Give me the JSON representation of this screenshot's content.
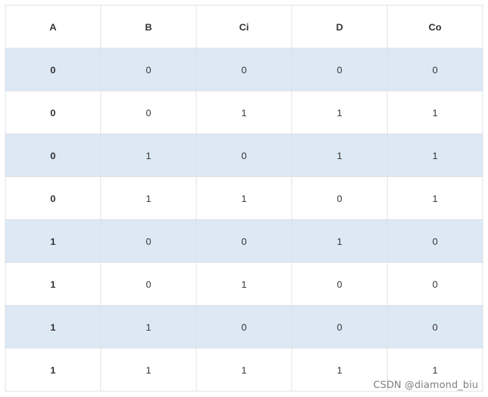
{
  "table": {
    "headers": [
      "A",
      "B",
      "Ci",
      "D",
      "Co"
    ],
    "rows": [
      [
        "0",
        "0",
        "0",
        "0",
        "0"
      ],
      [
        "0",
        "0",
        "1",
        "1",
        "1"
      ],
      [
        "0",
        "1",
        "0",
        "1",
        "1"
      ],
      [
        "0",
        "1",
        "1",
        "0",
        "1"
      ],
      [
        "1",
        "0",
        "0",
        "1",
        "0"
      ],
      [
        "1",
        "0",
        "1",
        "0",
        "0"
      ],
      [
        "1",
        "1",
        "0",
        "0",
        "0"
      ],
      [
        "1",
        "1",
        "1",
        "1",
        "1"
      ]
    ]
  },
  "watermark": "CSDN @diamond_biu",
  "colors": {
    "striped_row": "#dde8f5",
    "border": "#dfe2e5",
    "text": "#333333"
  }
}
